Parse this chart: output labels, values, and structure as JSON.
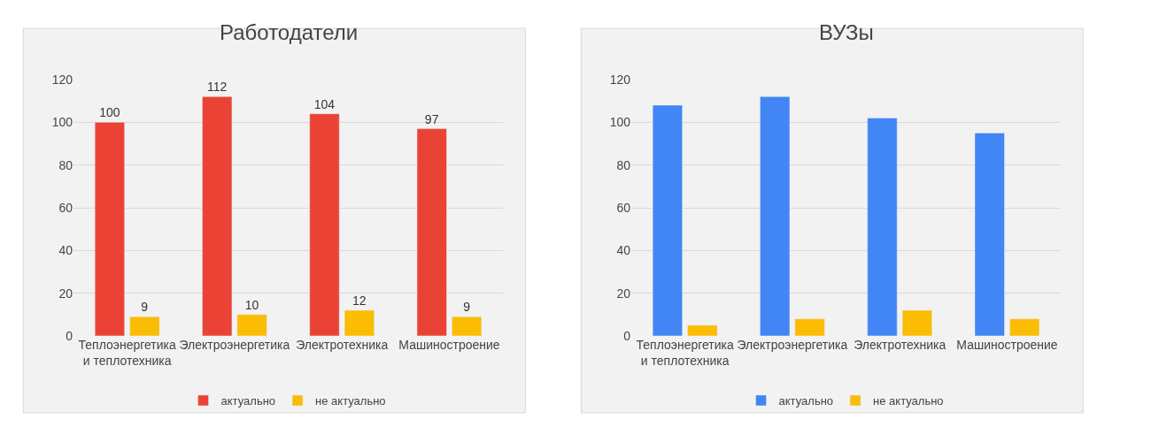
{
  "chart_data": [
    {
      "type": "bar",
      "title": "Работодатели",
      "categories": [
        "Теплоэнергетика и теплотехника",
        "Электроэнергетика",
        "Электротехника",
        "Машиностроение"
      ],
      "series": [
        {
          "name": "актуально",
          "color": "#ea4335",
          "values": [
            100,
            112,
            104,
            97
          ]
        },
        {
          "name": "не актуально",
          "color": "#fbbc04",
          "values": [
            9,
            10,
            12,
            9
          ]
        }
      ],
      "ylim": [
        0,
        120
      ],
      "yticks": [
        0,
        20,
        40,
        60,
        80,
        100,
        120
      ],
      "grid": "y",
      "legend": "bottom",
      "data_labels": true
    },
    {
      "type": "bar",
      "title": "ВУЗы",
      "categories": [
        "Теплоэнергетика и теплотехника",
        "Электроэнергетика",
        "Электротехника",
        "Машиностроение"
      ],
      "series": [
        {
          "name": "актуально",
          "color": "#4285f4",
          "values": [
            108,
            112,
            102,
            95
          ]
        },
        {
          "name": "не актуально",
          "color": "#fbbc04",
          "values": [
            5,
            8,
            12,
            8
          ]
        }
      ],
      "ylim": [
        0,
        120
      ],
      "yticks": [
        0,
        20,
        40,
        60,
        80,
        100,
        120
      ],
      "grid": "y",
      "legend": "bottom"
    }
  ]
}
